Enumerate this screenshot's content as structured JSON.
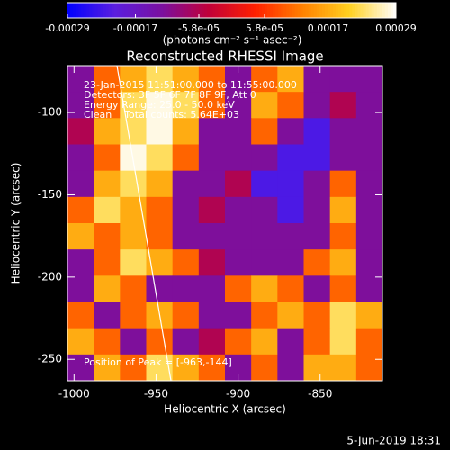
{
  "chart_data": {
    "type": "heatmap",
    "title": "Reconstructed RHESSI Image",
    "x_label": "Heliocentric X (arcsec)",
    "y_label": "Heliocentric Y (arcsec)",
    "xlim": [
      -1004,
      -812
    ],
    "ylim": [
      -263,
      -71.5
    ],
    "xticks": [
      -1000,
      -950,
      -900,
      -850
    ],
    "yticks": [
      -100,
      -150,
      -200,
      -250
    ],
    "colorbar": {
      "label": "(photons cm⁻² s⁻¹ asec⁻²)",
      "clim": [
        -0.00029,
        0.00029
      ],
      "ticks": [
        -0.00029,
        -0.00017,
        {
          "value": -5.8e-05,
          "label": "-5.8e-05"
        },
        {
          "value": 5.8e-05,
          "label": "5.8e-05"
        },
        0.00017,
        0.00029
      ],
      "colormap": [
        "#0000ff",
        "#5a1ee0",
        "#7a10a0",
        "#c0003a",
        "#ff2000",
        "#ff8000",
        "#ffd020",
        "#ffffff"
      ]
    },
    "annotations": [
      "23-Jan-2015 11:51:00.000 to 11:55:00.000",
      "Detectors: 3F 5F 6F 7F 8F 9F, Att 0",
      "Energy Range: 25.0 - 50.0 keV",
      "Clean    Total counts: 5.64E+03"
    ],
    "peak_label": "Position of Peak = [-963,-144]",
    "timestamp": "5-Jun-2019 18:31",
    "z": [
      [
        -0.00012,
        0.0001,
        0.00017,
        0.00023,
        0.00017,
        0.0001,
        -0.00012,
        0.0001,
        0.00017,
        -0.00012,
        -0.00012,
        -0.00012
      ],
      [
        -0.00012,
        0.0001,
        0.00023,
        0.00028,
        0.00023,
        0.0001,
        -0.00012,
        0.00017,
        0.0001,
        -0.00012,
        -6e-05,
        -0.00012
      ],
      [
        -6e-05,
        0.00017,
        0.00023,
        0.00028,
        0.00017,
        -0.00012,
        -0.00012,
        0.0001,
        -0.00012,
        -0.00022,
        -0.00012,
        -0.00012
      ],
      [
        -0.00012,
        0.0001,
        0.00028,
        0.00023,
        0.0001,
        -0.00012,
        -0.00012,
        -0.00012,
        -0.00022,
        -0.00022,
        -0.00012,
        -0.00012
      ],
      [
        -0.00012,
        0.00017,
        0.00023,
        0.00017,
        -0.00012,
        -0.00012,
        -6e-05,
        -0.00022,
        -0.00022,
        -0.00012,
        0.0001,
        -0.00012
      ],
      [
        0.0001,
        0.00023,
        0.00017,
        0.0001,
        -0.00012,
        -6e-05,
        -0.00012,
        -0.00012,
        -0.00022,
        -0.00012,
        0.00017,
        -0.00012
      ],
      [
        0.00017,
        0.0001,
        0.00017,
        0.0001,
        -0.00012,
        -0.00012,
        -0.00012,
        -0.00012,
        -0.00012,
        -0.00012,
        0.0001,
        -0.00012
      ],
      [
        -0.00012,
        0.0001,
        0.00023,
        0.00017,
        0.0001,
        -6e-05,
        -0.00012,
        -0.00012,
        -0.00012,
        0.0001,
        0.00017,
        -0.00012
      ],
      [
        -0.00012,
        0.00017,
        0.0001,
        -0.00012,
        -0.00012,
        -0.00012,
        0.0001,
        0.00017,
        0.0001,
        -0.00012,
        0.0001,
        -0.00012
      ],
      [
        0.0001,
        -0.00012,
        0.0001,
        0.00017,
        0.0001,
        -0.00012,
        -0.00012,
        0.0001,
        0.00017,
        0.0001,
        0.00023,
        0.00017
      ],
      [
        0.00017,
        0.0001,
        -0.00012,
        0.0001,
        -0.00012,
        -6e-05,
        0.0001,
        0.00017,
        -0.00012,
        0.0001,
        0.00023,
        0.0001
      ],
      [
        -0.00012,
        0.00017,
        0.0001,
        0.00023,
        0.00017,
        0.0001,
        -0.00012,
        0.0001,
        -0.00012,
        0.00017,
        0.00017,
        0.0001
      ]
    ]
  }
}
